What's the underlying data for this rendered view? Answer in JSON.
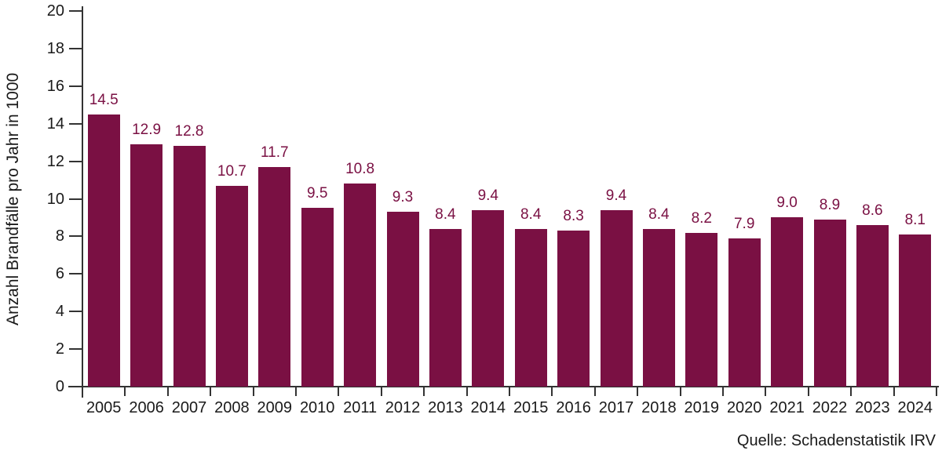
{
  "chart_data": {
    "type": "bar",
    "categories": [
      "2005",
      "2006",
      "2007",
      "2008",
      "2009",
      "2010",
      "2011",
      "2012",
      "2013",
      "2014",
      "2015",
      "2016",
      "2017",
      "2018",
      "2019",
      "2020",
      "2021",
      "2022",
      "2023",
      "2024"
    ],
    "values": [
      14.5,
      12.9,
      12.8,
      10.7,
      11.7,
      9.5,
      10.8,
      9.3,
      8.4,
      9.4,
      8.4,
      8.3,
      9.4,
      8.4,
      8.2,
      7.9,
      9.0,
      8.9,
      8.6,
      8.1
    ],
    "title": "",
    "xlabel": "",
    "ylabel": "Anzahl Brandfälle pro Jahr in 1000",
    "ylim": [
      0,
      20
    ],
    "ytick_step": 2,
    "value_label_decimals": 1,
    "grid": false,
    "legend": false,
    "bar_color": "#7A1043",
    "value_label_color": "#7A1043",
    "axis_color": "#333333",
    "text_color": "#1a1a1a"
  },
  "source_note": "Quelle: Schadenstatistik IRV"
}
